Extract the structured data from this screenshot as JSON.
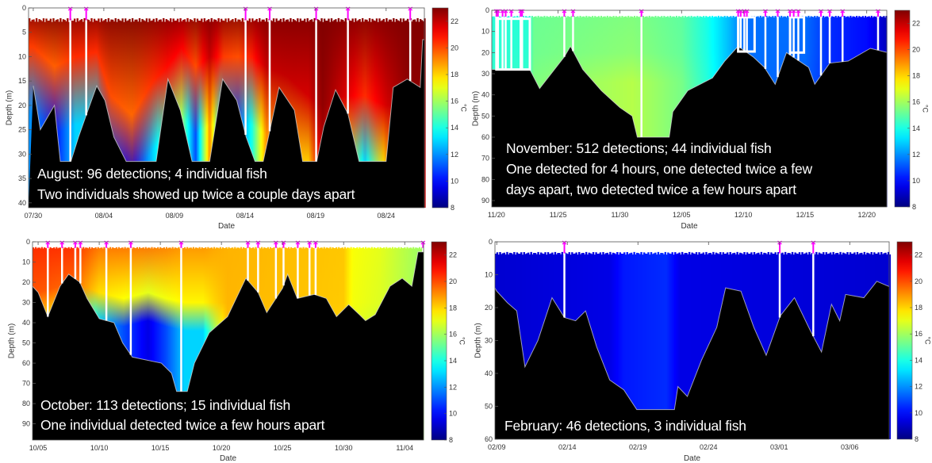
{
  "chart_data": [
    {
      "type": "heatmap",
      "panel": "august",
      "xlabel": "Date",
      "ylabel": "Depth (m)",
      "colorbar_label": "°C",
      "colormap": "jet",
      "clim": [
        8,
        23
      ],
      "colorbar_ticks": [
        8,
        10,
        12,
        14,
        16,
        18,
        20,
        22
      ],
      "xlim": [
        "07/29 16",
        "08/26 17"
      ],
      "x_ticks": [
        "07/30",
        "08/04",
        "08/09",
        "08/14",
        "08/19",
        "08/24"
      ],
      "ylim": [
        0,
        41
      ],
      "y_ticks": [
        0,
        5,
        10,
        15,
        20,
        25,
        30,
        35,
        40
      ],
      "y_reversed": true,
      "surface_gap_m": 2.5,
      "annotation": [
        "August: 96 detections; 4 individual fish",
        "Two individuals showed up twice a couple days apart"
      ],
      "temperature_profile": {
        "columns": [
          "date",
          "surface_temp_C",
          "deep_temp_C",
          "thermocline_depth_m"
        ],
        "surface_temp_C": 23,
        "rows": [
          [
            "07/30 00",
            23,
            12,
            8
          ],
          [
            "07/31 12",
            23,
            10,
            12
          ],
          [
            "08/02 00",
            23,
            13,
            10
          ],
          [
            "08/03 12",
            23,
            13,
            9
          ],
          [
            "08/04 12",
            23,
            11,
            18
          ],
          [
            "08/06 00",
            23,
            9.5,
            22
          ],
          [
            "08/07 12",
            23,
            13,
            15
          ],
          [
            "08/08 12",
            23,
            15,
            12
          ],
          [
            "08/09 12",
            23,
            16,
            8
          ],
          [
            "08/10 12",
            23,
            11,
            12
          ],
          [
            "08/11 12",
            23,
            19,
            10
          ],
          [
            "08/12 12",
            23,
            12,
            10
          ],
          [
            "08/13 12",
            23,
            11,
            10
          ],
          [
            "08/14 12",
            23,
            14,
            10
          ],
          [
            "08/15 12",
            23,
            19,
            12
          ],
          [
            "08/17 00",
            23,
            19,
            14
          ],
          [
            "08/18 12",
            23,
            18,
            18
          ],
          [
            "08/19 12",
            23,
            22,
            20
          ],
          [
            "08/21 00",
            23,
            18,
            18
          ],
          [
            "08/22 12",
            23,
            13,
            18
          ],
          [
            "08/24 00",
            23,
            18,
            20
          ],
          [
            "08/25 12",
            23,
            22,
            20
          ]
        ]
      },
      "bottom_depth_m": [
        [
          "07/30 00",
          16
        ],
        [
          "07/30 12",
          25
        ],
        [
          "07/31 12",
          20
        ],
        [
          "07/31 22",
          31.5
        ],
        [
          "08/01 16",
          31.5
        ],
        [
          "08/02 05",
          26.5
        ],
        [
          "08/02 19",
          21.7
        ],
        [
          "08/03 12",
          16
        ],
        [
          "08/04 02",
          19
        ],
        [
          "08/04 17",
          26.5
        ],
        [
          "08/05 14",
          31.5
        ],
        [
          "08/07 17",
          31.5
        ],
        [
          "08/08 13",
          14.6
        ],
        [
          "08/09 10",
          21
        ],
        [
          "08/10 06",
          31.5
        ],
        [
          "08/11 12",
          31.5
        ],
        [
          "08/12 10",
          14.6
        ],
        [
          "08/13 10",
          19
        ],
        [
          "08/14 02",
          26.5
        ],
        [
          "08/14 17",
          31.5
        ],
        [
          "08/15 07",
          31.5
        ],
        [
          "08/16 10",
          16.3
        ],
        [
          "08/17 12",
          21
        ],
        [
          "08/18 02",
          31.5
        ],
        [
          "08/19 02",
          31.5
        ],
        [
          "08/19 14",
          24.4
        ],
        [
          "08/20 10",
          16.8
        ],
        [
          "08/21 07",
          21.7
        ],
        [
          "08/22 02",
          31.5
        ],
        [
          "08/24 00",
          31.5
        ],
        [
          "08/24 12",
          16.3
        ],
        [
          "08/25 12",
          14.6
        ],
        [
          "08/26 10",
          16.3
        ],
        [
          "08/26 14",
          6.5
        ],
        [
          "08/26 17",
          6.5
        ]
      ],
      "detections": [
        "08/01 15",
        "08/02 18",
        "08/14 01",
        "08/15 18",
        "08/19 01",
        "08/21 07",
        "08/25 17"
      ],
      "boxes": []
    },
    {
      "type": "heatmap",
      "panel": "november",
      "xlabel": "Date",
      "ylabel": "Depth (m)",
      "colorbar_label": "°C",
      "colormap": "jet",
      "clim": [
        8,
        23
      ],
      "colorbar_ticks": [
        8,
        10,
        12,
        14,
        16,
        18,
        20,
        22
      ],
      "xlim": [
        "11/19 15",
        "12/21 15"
      ],
      "x_ticks": [
        "11/20",
        "11/25",
        "11/30",
        "12/05",
        "12/10",
        "12/15",
        "12/20"
      ],
      "ylim": [
        0,
        93
      ],
      "y_ticks": [
        0,
        10,
        20,
        30,
        40,
        50,
        60,
        70,
        80,
        90
      ],
      "y_reversed": true,
      "surface_gap_m": 3,
      "annotation": [
        "November: 512 detections; 44 individual fish",
        "One detected for 4 hours, one detected twice a few",
        "days apart, two detected twice a few hours apart"
      ],
      "temperature_profile": {
        "columns": [
          "date",
          "surface_temp_C",
          "deep_temp_C",
          "thermocline_depth_m"
        ],
        "rows": [
          [
            "11/20 00",
            14.2,
            14.4,
            20
          ],
          [
            "11/22 17",
            14.2,
            14.4,
            20
          ],
          [
            "11/23 00",
            15.2,
            15.5,
            20
          ],
          [
            "12/01 00",
            15.5,
            16.3,
            20
          ],
          [
            "12/05 00",
            15,
            15.4,
            20
          ],
          [
            "12/07 00",
            14,
            14.2,
            20
          ],
          [
            "12/09 00",
            12.5,
            12.5,
            20
          ],
          [
            "12/10 00",
            11.5,
            11.5,
            20
          ],
          [
            "12/15 00",
            11.5,
            11.3,
            20
          ],
          [
            "12/17 00",
            10.5,
            10.5,
            20
          ],
          [
            "12/20 00",
            10,
            10,
            20
          ],
          [
            "12/21 12",
            9,
            9,
            20
          ]
        ]
      },
      "bottom_depth_m": [
        [
          "11/19 15",
          28
        ],
        [
          "11/22 17",
          28
        ],
        [
          "11/23 12",
          37
        ],
        [
          "11/25 12",
          22
        ],
        [
          "11/26 00",
          17
        ],
        [
          "11/27 00",
          28
        ],
        [
          "11/28 12",
          38
        ],
        [
          "11/30 00",
          46
        ],
        [
          "12/01 00",
          50
        ],
        [
          "12/01 10",
          60
        ],
        [
          "12/04 00",
          60
        ],
        [
          "12/04 07",
          48
        ],
        [
          "12/05 12",
          38
        ],
        [
          "12/07 12",
          32
        ],
        [
          "12/08 12",
          24
        ],
        [
          "12/09 14",
          17
        ],
        [
          "12/10 19",
          22
        ],
        [
          "12/11 17",
          27
        ],
        [
          "12/12 14",
          35
        ],
        [
          "12/13 12",
          20
        ],
        [
          "12/15 07",
          27
        ],
        [
          "12/15 19",
          35
        ],
        [
          "12/17 00",
          25
        ],
        [
          "12/18 12",
          24
        ],
        [
          "12/20 07",
          18
        ],
        [
          "12/21 17",
          20
        ]
      ],
      "detections": [
        "11/20 00",
        "11/20 03",
        "11/20 12",
        "11/20 18",
        "11/21 05",
        "11/21 23",
        "11/22 02",
        "11/25 12",
        "11/26 05",
        "12/01 18",
        "12/09 14",
        "12/09 19",
        "12/10 02",
        "12/10 07",
        "12/11 19",
        "12/12 19",
        "12/13 19",
        "12/14 02",
        "12/14 11",
        "12/16 07",
        "12/17 00",
        "12/18 01",
        "12/20 22"
      ],
      "boxes": [
        [
          "11/20 00",
          "11/22 17",
          4,
          28
        ],
        [
          "12/09 14",
          "12/10 22",
          3.3,
          19.5
        ],
        [
          "12/13 19",
          "12/14 22",
          3.3,
          20
        ]
      ]
    },
    {
      "type": "heatmap",
      "panel": "october",
      "xlabel": "Date",
      "ylabel": "Depth (m)",
      "colorbar_label": "°C",
      "colormap": "jet",
      "clim": [
        8,
        23
      ],
      "colorbar_ticks": [
        8,
        10,
        12,
        14,
        16,
        18,
        20,
        22
      ],
      "xlim": [
        "10/04 13",
        "11/05 13"
      ],
      "x_ticks": [
        "10/05",
        "10/10",
        "10/15",
        "10/20",
        "10/25",
        "10/30",
        "11/04"
      ],
      "ylim": [
        0,
        98
      ],
      "y_ticks": [
        0,
        10,
        20,
        30,
        40,
        50,
        60,
        70,
        80,
        90
      ],
      "y_reversed": true,
      "surface_gap_m": 3,
      "annotation": [
        "October: 113 detections; 15 individual fish",
        "One individual detected twice a few hours apart"
      ],
      "temperature_profile": {
        "columns": [
          "date",
          "surface_temp_C",
          "deep_temp_C",
          "thermocline_depth_m"
        ],
        "rows": [
          [
            "10/05 00",
            20.5,
            18,
            25
          ],
          [
            "10/08 00",
            20.5,
            17,
            20
          ],
          [
            "10/10 00",
            19.5,
            13,
            25
          ],
          [
            "10/12 00",
            19.5,
            11,
            28
          ],
          [
            "10/14 00",
            19.5,
            9.5,
            25
          ],
          [
            "10/15 12",
            19.3,
            11,
            28
          ],
          [
            "10/17 00",
            19,
            13,
            30
          ],
          [
            "10/18 12",
            19,
            13,
            30
          ],
          [
            "10/19 12",
            18.7,
            16,
            30
          ],
          [
            "10/20 12",
            18.5,
            18.3,
            30
          ],
          [
            "10/30 00",
            18.2,
            18,
            30
          ],
          [
            "10/30 18",
            17.3,
            17,
            30
          ],
          [
            "11/02 00",
            17,
            16.5,
            30
          ],
          [
            "11/05 00",
            16,
            16,
            30
          ]
        ]
      },
      "bottom_depth_m": [
        [
          "10/04 13",
          22
        ],
        [
          "10/05 00",
          25
        ],
        [
          "10/05 19",
          37
        ],
        [
          "10/06 19",
          22
        ],
        [
          "10/07 12",
          16
        ],
        [
          "10/08 10",
          20
        ],
        [
          "10/09 00",
          28
        ],
        [
          "10/10 00",
          38
        ],
        [
          "10/11 05",
          40
        ],
        [
          "10/11 22",
          50
        ],
        [
          "10/12 17",
          57
        ],
        [
          "10/15 02",
          60
        ],
        [
          "10/15 22",
          65
        ],
        [
          "10/16 08",
          74
        ],
        [
          "10/17 05",
          74
        ],
        [
          "10/17 19",
          60
        ],
        [
          "10/19 00",
          45
        ],
        [
          "10/20 12",
          37
        ],
        [
          "10/22 00",
          18
        ],
        [
          "10/23 00",
          25
        ],
        [
          "10/23 17",
          35
        ],
        [
          "10/25 00",
          23
        ],
        [
          "10/25 10",
          16
        ],
        [
          "10/26 05",
          28
        ],
        [
          "10/27 14",
          26
        ],
        [
          "10/28 14",
          28
        ],
        [
          "10/29 10",
          37
        ],
        [
          "10/30 10",
          31
        ],
        [
          "10/31 07",
          36
        ],
        [
          "10/31 19",
          39
        ],
        [
          "11/01 14",
          36
        ],
        [
          "11/02 19",
          22
        ],
        [
          "11/03 19",
          18
        ],
        [
          "11/04 14",
          22
        ],
        [
          "11/05 02",
          5
        ],
        [
          "11/05 13",
          5
        ]
      ],
      "detections": [
        "10/05 19",
        "10/06 23",
        "10/08 01",
        "10/08 11",
        "10/10 14",
        "10/12 14",
        "10/16 17",
        "10/22 04",
        "10/23 00",
        "10/24 11",
        "10/25 02",
        "10/26 06",
        "10/27 05",
        "10/27 17",
        "11/05 12"
      ],
      "boxes": []
    },
    {
      "type": "heatmap",
      "panel": "february",
      "xlabel": "Date",
      "ylabel": "Depth (m)",
      "colorbar_label": "°C",
      "colormap": "jet",
      "clim": [
        8,
        23
      ],
      "colorbar_ticks": [
        8,
        10,
        12,
        14,
        16,
        18,
        20,
        22
      ],
      "xlim": [
        "02/08 21",
        "03/08 19"
      ],
      "x_ticks": [
        "02/09",
        "02/14",
        "02/19",
        "02/24",
        "03/01",
        "03/06"
      ],
      "ylim": [
        0,
        60
      ],
      "y_ticks": [
        0,
        10,
        20,
        30,
        40,
        50,
        60
      ],
      "y_reversed": true,
      "surface_gap_m": 3.5,
      "annotation": [
        "February: 46 detections, 3 individual fish"
      ],
      "temperature_profile": {
        "columns": [
          "date",
          "surface_temp_C",
          "deep_temp_C",
          "thermocline_depth_m"
        ],
        "rows": [
          [
            "02/09 00",
            9.2,
            9.2,
            20
          ],
          [
            "02/17 00",
            9.5,
            9.5,
            20
          ],
          [
            "02/18 00",
            10.2,
            10.2,
            20
          ],
          [
            "02/21 00",
            10.5,
            10.5,
            20
          ],
          [
            "02/22 00",
            9.5,
            9.5,
            20
          ],
          [
            "03/08 19",
            9.2,
            9.2,
            20
          ]
        ]
      },
      "bottom_depth_m": [
        [
          "02/08 21",
          14
        ],
        [
          "02/09 00",
          15
        ],
        [
          "02/09 18",
          18.5
        ],
        [
          "02/10 10",
          21
        ],
        [
          "02/11 00",
          38
        ],
        [
          "02/11 22",
          30
        ],
        [
          "02/12 22",
          17
        ],
        [
          "02/13 19",
          23
        ],
        [
          "02/14 14",
          24
        ],
        [
          "02/15 07",
          21
        ],
        [
          "02/16 02",
          32
        ],
        [
          "02/17 00",
          42
        ],
        [
          "02/18 00",
          45
        ],
        [
          "02/18 22",
          51
        ],
        [
          "02/21 14",
          51
        ],
        [
          "02/21 20",
          44
        ],
        [
          "02/22 12",
          47
        ],
        [
          "02/23 12",
          36
        ],
        [
          "02/24 14",
          26
        ],
        [
          "02/25 05",
          14
        ],
        [
          "02/26 07",
          15
        ],
        [
          "02/27 05",
          26
        ],
        [
          "02/28 02",
          34.5
        ],
        [
          "03/01 02",
          22.5
        ],
        [
          "03/02 02",
          17
        ],
        [
          "03/03 05",
          27
        ],
        [
          "03/04 00",
          33.5
        ],
        [
          "03/04 17",
          19
        ],
        [
          "03/05 07",
          24
        ],
        [
          "03/05 17",
          16
        ],
        [
          "03/07 00",
          17
        ],
        [
          "03/07 22",
          12
        ],
        [
          "03/08 19",
          13.6
        ]
      ],
      "detections": [
        "02/13 19",
        "03/01 01",
        "03/03 10"
      ],
      "boxes": []
    }
  ],
  "colors": {
    "detection_marker": "#ff00ff",
    "detection_line": "#ffffff",
    "seafloor": "#000000",
    "annotation_text": "#ffffff"
  }
}
